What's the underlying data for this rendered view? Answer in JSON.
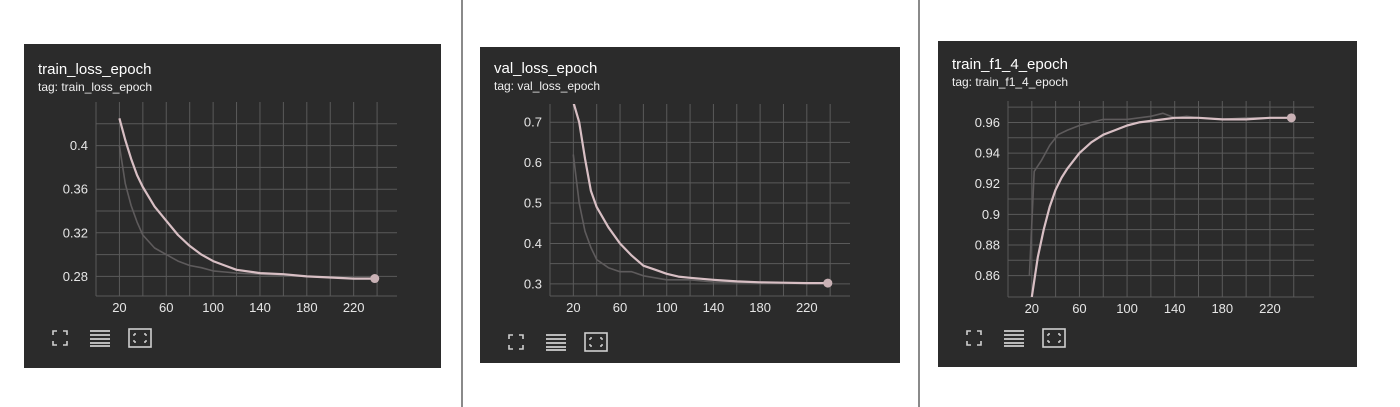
{
  "colors": {
    "panel_bg": "#2b2b2b",
    "grid": "#5a5a5a",
    "axis_text": "#e6e6e6",
    "smoothed_line": "#d8bfc4",
    "raw_line": "#5e5b5c",
    "marker": "#c9b1b5",
    "icon": "#cfcfcf"
  },
  "toolbar_icons": [
    "fullscreen-icon",
    "toggle-lines-icon",
    "fit-domain-icon"
  ],
  "chart_data": [
    {
      "type": "line",
      "title": "train_loss_epoch",
      "subtitle": "tag: train_loss_epoch",
      "xlim": [
        0,
        257
      ],
      "ylim": [
        0.262,
        0.44
      ],
      "xticks": [
        20,
        60,
        100,
        140,
        180,
        220
      ],
      "xtick_labels": [
        "20",
        "60",
        "100",
        "140",
        "180",
        "220"
      ],
      "yticks": [
        0.28,
        0.32,
        0.36,
        0.4
      ],
      "ytick_labels": [
        "0.28",
        "0.32",
        "0.36",
        "0.4"
      ],
      "x_gridlines": [
        20,
        40,
        60,
        80,
        100,
        120,
        140,
        160,
        180,
        200,
        220,
        240
      ],
      "y_gridlines": [
        0.28,
        0.3,
        0.32,
        0.34,
        0.36,
        0.38,
        0.4,
        0.42
      ],
      "series": [
        {
          "role": "raw",
          "x": [
            20,
            25,
            30,
            35,
            40,
            50,
            60,
            70,
            80,
            90,
            100,
            110,
            120,
            140,
            160,
            180,
            200,
            220,
            238
          ],
          "y": [
            0.4,
            0.365,
            0.345,
            0.33,
            0.318,
            0.306,
            0.3,
            0.294,
            0.29,
            0.288,
            0.285,
            0.284,
            0.283,
            0.282,
            0.281,
            0.28,
            0.279,
            0.278,
            0.278
          ]
        },
        {
          "role": "smoothed",
          "x": [
            20,
            25,
            30,
            35,
            40,
            50,
            60,
            70,
            80,
            90,
            100,
            110,
            120,
            140,
            160,
            180,
            200,
            220,
            238
          ],
          "y": [
            0.425,
            0.405,
            0.388,
            0.373,
            0.362,
            0.344,
            0.331,
            0.318,
            0.308,
            0.3,
            0.294,
            0.29,
            0.286,
            0.283,
            0.282,
            0.28,
            0.279,
            0.278,
            0.278
          ]
        }
      ]
    },
    {
      "type": "line",
      "title": "val_loss_epoch",
      "subtitle": "tag: val_loss_epoch",
      "xlim": [
        0,
        257
      ],
      "ylim": [
        0.27,
        0.745
      ],
      "xticks": [
        20,
        60,
        100,
        140,
        180,
        220
      ],
      "xtick_labels": [
        "20",
        "60",
        "100",
        "140",
        "180",
        "220"
      ],
      "yticks": [
        0.3,
        0.4,
        0.5,
        0.6,
        0.7
      ],
      "ytick_labels": [
        "0.3",
        "0.4",
        "0.5",
        "0.6",
        "0.7"
      ],
      "x_gridlines": [
        20,
        40,
        60,
        80,
        100,
        120,
        140,
        160,
        180,
        200,
        220,
        240
      ],
      "y_gridlines": [
        0.3,
        0.35,
        0.4,
        0.45,
        0.5,
        0.55,
        0.6,
        0.65,
        0.7
      ],
      "series": [
        {
          "role": "raw",
          "x": [
            20,
            25,
            30,
            35,
            40,
            50,
            60,
            70,
            80,
            100,
            120,
            140,
            160,
            180,
            200,
            220,
            238
          ],
          "y": [
            0.62,
            0.5,
            0.43,
            0.39,
            0.36,
            0.34,
            0.33,
            0.33,
            0.32,
            0.31,
            0.31,
            0.305,
            0.304,
            0.303,
            0.302,
            0.302,
            0.302
          ]
        },
        {
          "role": "smoothed",
          "x": [
            20,
            25,
            30,
            35,
            40,
            50,
            60,
            70,
            80,
            90,
            100,
            110,
            120,
            140,
            160,
            180,
            200,
            220,
            238
          ],
          "y": [
            0.75,
            0.7,
            0.61,
            0.53,
            0.49,
            0.44,
            0.4,
            0.37,
            0.345,
            0.335,
            0.325,
            0.318,
            0.315,
            0.31,
            0.306,
            0.304,
            0.303,
            0.302,
            0.302
          ]
        }
      ]
    },
    {
      "type": "line",
      "title": "train_f1_4_epoch",
      "subtitle": "tag: train_f1_4_epoch",
      "xlim": [
        0,
        257
      ],
      "ylim": [
        0.846,
        0.974
      ],
      "xticks": [
        20,
        60,
        100,
        140,
        180,
        220
      ],
      "xtick_labels": [
        "20",
        "60",
        "100",
        "140",
        "180",
        "220"
      ],
      "yticks": [
        0.86,
        0.88,
        0.9,
        0.92,
        0.94,
        0.96
      ],
      "ytick_labels": [
        "0.86",
        "0.88",
        "0.9",
        "0.92",
        "0.94",
        "0.96"
      ],
      "x_gridlines": [
        20,
        40,
        60,
        80,
        100,
        120,
        140,
        160,
        180,
        200,
        220,
        240
      ],
      "y_gridlines": [
        0.86,
        0.87,
        0.88,
        0.89,
        0.9,
        0.91,
        0.92,
        0.93,
        0.94,
        0.95,
        0.96,
        0.97
      ],
      "series": [
        {
          "role": "raw",
          "x": [
            18,
            22,
            28,
            35,
            42,
            50,
            60,
            70,
            80,
            90,
            100,
            120,
            130,
            140,
            150,
            160,
            180,
            200,
            220,
            238
          ],
          "y": [
            0.86,
            0.928,
            0.935,
            0.945,
            0.952,
            0.955,
            0.958,
            0.96,
            0.962,
            0.962,
            0.962,
            0.964,
            0.966,
            0.963,
            0.964,
            0.963,
            0.962,
            0.963,
            0.963,
            0.963
          ]
        },
        {
          "role": "smoothed",
          "x": [
            20,
            25,
            30,
            35,
            40,
            45,
            50,
            60,
            70,
            80,
            90,
            100,
            110,
            120,
            130,
            140,
            160,
            180,
            200,
            220,
            238
          ],
          "y": [
            0.846,
            0.872,
            0.89,
            0.905,
            0.916,
            0.924,
            0.93,
            0.94,
            0.947,
            0.952,
            0.955,
            0.958,
            0.96,
            0.961,
            0.962,
            0.963,
            0.963,
            0.962,
            0.962,
            0.963,
            0.963
          ]
        }
      ]
    }
  ]
}
